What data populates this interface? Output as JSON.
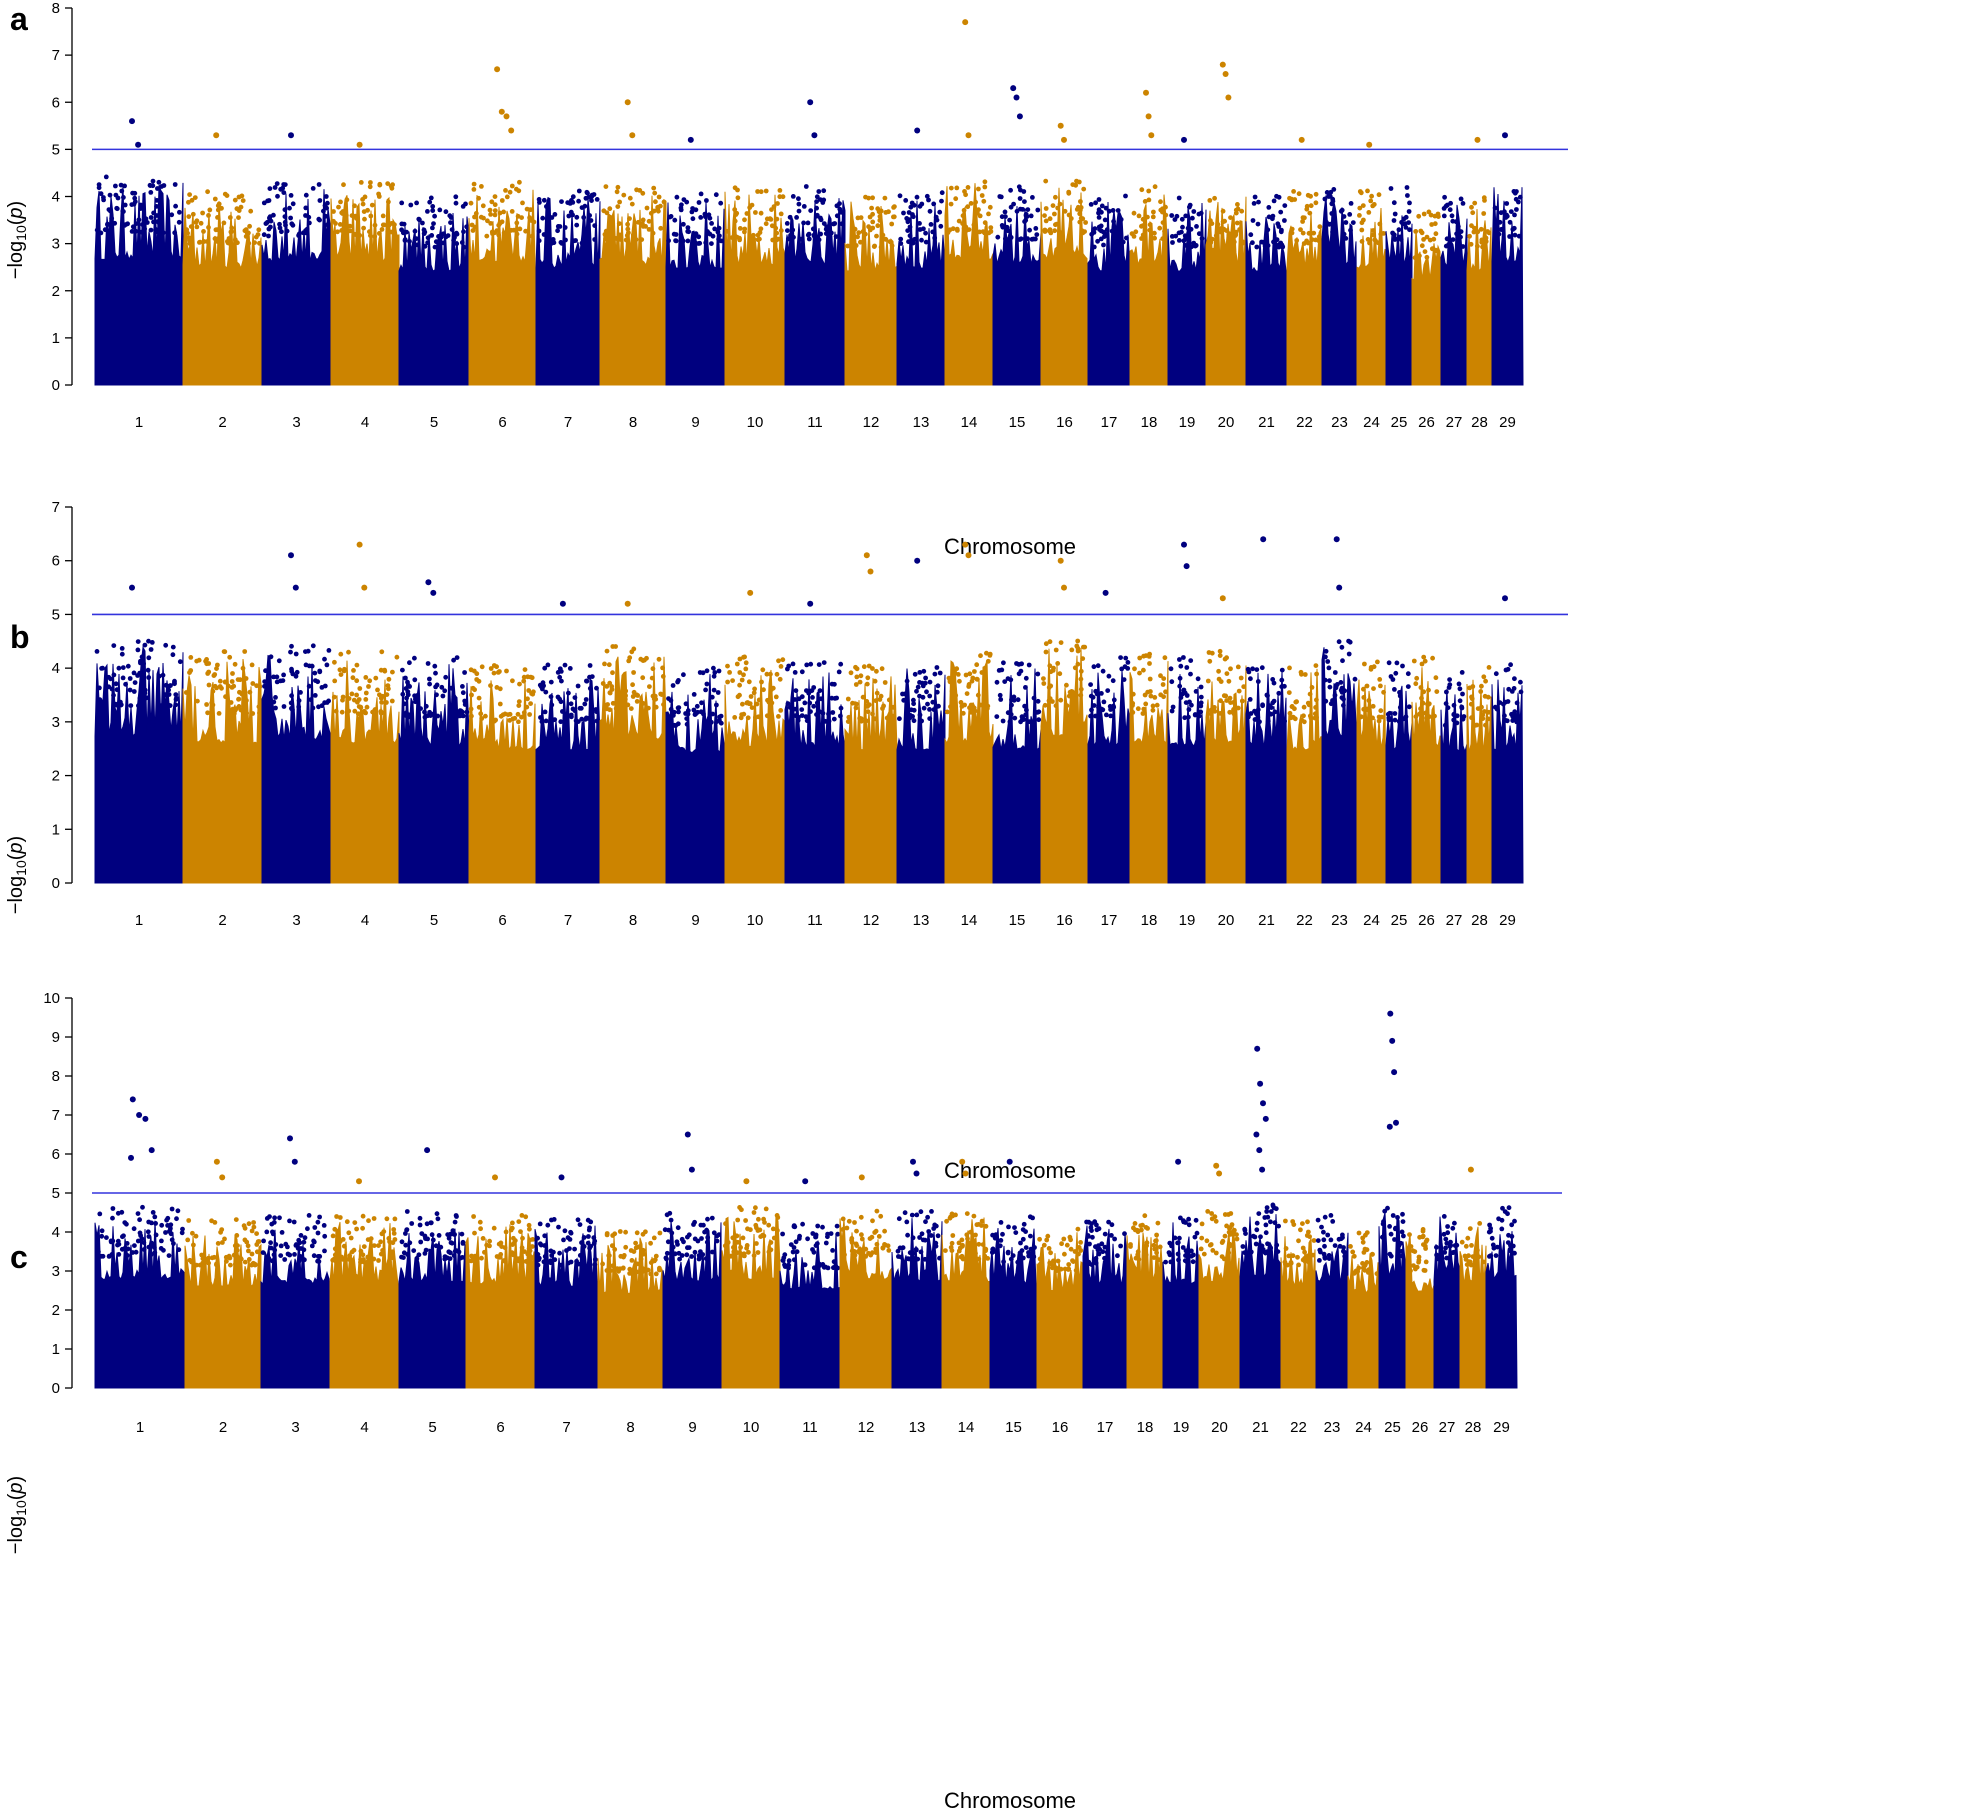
{
  "figure": {
    "colors": {
      "odd": "#00007f",
      "even": "#cc8400",
      "threshold": "#3333dd",
      "axis": "#000000"
    }
  },
  "chart_data": [
    {
      "panel": "a",
      "type": "scatter",
      "subtype": "manhattan",
      "xlabel": "Chromosome",
      "ylabel": "-log10(p)",
      "ylim": [
        0,
        8
      ],
      "yticks": [
        0,
        1,
        2,
        3,
        4,
        5,
        6,
        7,
        8
      ],
      "threshold": 5,
      "categories": [
        "1",
        "2",
        "3",
        "4",
        "5",
        "6",
        "7",
        "8",
        "9",
        "10",
        "11",
        "12",
        "13",
        "14",
        "15",
        "16",
        "17",
        "18",
        "19",
        "20",
        "21",
        "22",
        "23",
        "24",
        "25",
        "26",
        "27",
        "28",
        "29"
      ],
      "band_max": [
        4.3,
        4.0,
        4.2,
        4.2,
        3.9,
        4.2,
        4.0,
        4.1,
        4.0,
        4.1,
        4.1,
        3.9,
        4.0,
        4.3,
        4.1,
        4.3,
        3.9,
        4.1,
        3.9,
        4.0,
        3.9,
        4.0,
        4.1,
        4.0,
        4.1,
        3.6,
        3.9,
        3.9,
        4.2
      ],
      "top_points": [
        {
          "chr": "1",
          "y": 5.6
        },
        {
          "chr": "1",
          "y": 5.1
        },
        {
          "chr": "2",
          "y": 5.3
        },
        {
          "chr": "3",
          "y": 5.3
        },
        {
          "chr": "4",
          "y": 5.1
        },
        {
          "chr": "6",
          "y": 6.7
        },
        {
          "chr": "6",
          "y": 5.8
        },
        {
          "chr": "6",
          "y": 5.7
        },
        {
          "chr": "6",
          "y": 5.4
        },
        {
          "chr": "8",
          "y": 6.0
        },
        {
          "chr": "8",
          "y": 5.3
        },
        {
          "chr": "9",
          "y": 5.2
        },
        {
          "chr": "11",
          "y": 6.0
        },
        {
          "chr": "11",
          "y": 5.3
        },
        {
          "chr": "13",
          "y": 5.4
        },
        {
          "chr": "14",
          "y": 7.7
        },
        {
          "chr": "14",
          "y": 5.3
        },
        {
          "chr": "15",
          "y": 6.3
        },
        {
          "chr": "15",
          "y": 6.1
        },
        {
          "chr": "15",
          "y": 5.7
        },
        {
          "chr": "16",
          "y": 5.5
        },
        {
          "chr": "16",
          "y": 5.2
        },
        {
          "chr": "18",
          "y": 6.2
        },
        {
          "chr": "18",
          "y": 5.7
        },
        {
          "chr": "18",
          "y": 5.3
        },
        {
          "chr": "19",
          "y": 5.2
        },
        {
          "chr": "20",
          "y": 6.8
        },
        {
          "chr": "20",
          "y": 6.6
        },
        {
          "chr": "20",
          "y": 6.1
        },
        {
          "chr": "22",
          "y": 5.2
        },
        {
          "chr": "24",
          "y": 5.1
        },
        {
          "chr": "28",
          "y": 5.2
        },
        {
          "chr": "29",
          "y": 5.3
        }
      ]
    },
    {
      "panel": "b",
      "type": "scatter",
      "subtype": "manhattan",
      "xlabel": "Chromosome",
      "ylabel": "-log10(p)",
      "ylim": [
        0,
        7
      ],
      "yticks": [
        0,
        1,
        2,
        3,
        4,
        5,
        6,
        7
      ],
      "threshold": 5,
      "categories": [
        "1",
        "2",
        "3",
        "4",
        "5",
        "6",
        "7",
        "8",
        "9",
        "10",
        "11",
        "12",
        "13",
        "14",
        "15",
        "16",
        "17",
        "18",
        "19",
        "20",
        "21",
        "22",
        "23",
        "24",
        "25",
        "26",
        "27",
        "28",
        "29"
      ],
      "band_max": [
        4.4,
        4.2,
        4.3,
        4.2,
        4.1,
        4.0,
        4.0,
        4.3,
        3.9,
        4.1,
        4.0,
        4.0,
        4.0,
        4.2,
        4.0,
        4.4,
        4.1,
        4.2,
        4.1,
        4.2,
        4.0,
        4.0,
        4.4,
        4.0,
        4.0,
        4.1,
        3.9,
        3.9,
        4.0
      ],
      "top_points": [
        {
          "chr": "1",
          "y": 5.5
        },
        {
          "chr": "3",
          "y": 6.1
        },
        {
          "chr": "3",
          "y": 5.5
        },
        {
          "chr": "4",
          "y": 6.3
        },
        {
          "chr": "4",
          "y": 5.5
        },
        {
          "chr": "5",
          "y": 5.6
        },
        {
          "chr": "5",
          "y": 5.4
        },
        {
          "chr": "7",
          "y": 5.2
        },
        {
          "chr": "8",
          "y": 5.2
        },
        {
          "chr": "10",
          "y": 5.4
        },
        {
          "chr": "11",
          "y": 5.2
        },
        {
          "chr": "12",
          "y": 6.1
        },
        {
          "chr": "12",
          "y": 5.8
        },
        {
          "chr": "13",
          "y": 6.0
        },
        {
          "chr": "14",
          "y": 6.3
        },
        {
          "chr": "14",
          "y": 6.1
        },
        {
          "chr": "16",
          "y": 6.0
        },
        {
          "chr": "16",
          "y": 5.5
        },
        {
          "chr": "17",
          "y": 5.4
        },
        {
          "chr": "19",
          "y": 6.3
        },
        {
          "chr": "19",
          "y": 5.9
        },
        {
          "chr": "20",
          "y": 5.3
        },
        {
          "chr": "21",
          "y": 6.4
        },
        {
          "chr": "23",
          "y": 6.4
        },
        {
          "chr": "23",
          "y": 5.5
        },
        {
          "chr": "29",
          "y": 5.3
        }
      ]
    },
    {
      "panel": "c",
      "type": "scatter",
      "subtype": "manhattan",
      "xlabel": "Chromosome",
      "ylabel": "-log10(p)",
      "ylim": [
        0,
        10
      ],
      "yticks": [
        0,
        1,
        2,
        3,
        4,
        5,
        6,
        7,
        8,
        9,
        10
      ],
      "threshold": 5,
      "categories": [
        "1",
        "2",
        "3",
        "4",
        "5",
        "6",
        "7",
        "8",
        "9",
        "10",
        "11",
        "12",
        "13",
        "14",
        "15",
        "16",
        "17",
        "18",
        "19",
        "20",
        "21",
        "22",
        "23",
        "24",
        "25",
        "26",
        "27",
        "28",
        "29"
      ],
      "band_max": [
        4.5,
        4.2,
        4.3,
        4.3,
        4.4,
        4.3,
        4.2,
        3.9,
        4.4,
        4.5,
        4.1,
        4.5,
        4.4,
        4.4,
        4.3,
        4.0,
        4.2,
        4.3,
        4.3,
        4.4,
        4.6,
        4.2,
        4.3,
        3.9,
        4.5,
        4.0,
        4.4,
        4.2,
        4.5
      ],
      "top_points": [
        {
          "chr": "1",
          "y": 7.4
        },
        {
          "chr": "1",
          "y": 7.0
        },
        {
          "chr": "1",
          "y": 6.9
        },
        {
          "chr": "1",
          "y": 6.1
        },
        {
          "chr": "1",
          "y": 5.9
        },
        {
          "chr": "2",
          "y": 5.8
        },
        {
          "chr": "2",
          "y": 5.4
        },
        {
          "chr": "3",
          "y": 6.4
        },
        {
          "chr": "3",
          "y": 5.8
        },
        {
          "chr": "4",
          "y": 5.3
        },
        {
          "chr": "5",
          "y": 6.1
        },
        {
          "chr": "6",
          "y": 5.4
        },
        {
          "chr": "7",
          "y": 5.4
        },
        {
          "chr": "9",
          "y": 6.5
        },
        {
          "chr": "9",
          "y": 5.6
        },
        {
          "chr": "10",
          "y": 5.3
        },
        {
          "chr": "11",
          "y": 5.3
        },
        {
          "chr": "12",
          "y": 5.4
        },
        {
          "chr": "13",
          "y": 5.8
        },
        {
          "chr": "13",
          "y": 5.5
        },
        {
          "chr": "14",
          "y": 5.8
        },
        {
          "chr": "14",
          "y": 5.5
        },
        {
          "chr": "15",
          "y": 5.8
        },
        {
          "chr": "19",
          "y": 5.8
        },
        {
          "chr": "20",
          "y": 5.7
        },
        {
          "chr": "20",
          "y": 5.5
        },
        {
          "chr": "21",
          "y": 8.7
        },
        {
          "chr": "21",
          "y": 7.8
        },
        {
          "chr": "21",
          "y": 7.3
        },
        {
          "chr": "21",
          "y": 6.9
        },
        {
          "chr": "21",
          "y": 6.5
        },
        {
          "chr": "21",
          "y": 6.1
        },
        {
          "chr": "21",
          "y": 5.6
        },
        {
          "chr": "25",
          "y": 9.6
        },
        {
          "chr": "25",
          "y": 8.9
        },
        {
          "chr": "25",
          "y": 8.1
        },
        {
          "chr": "25",
          "y": 6.8
        },
        {
          "chr": "25",
          "y": 6.7
        },
        {
          "chr": "28",
          "y": 5.6
        }
      ]
    }
  ]
}
